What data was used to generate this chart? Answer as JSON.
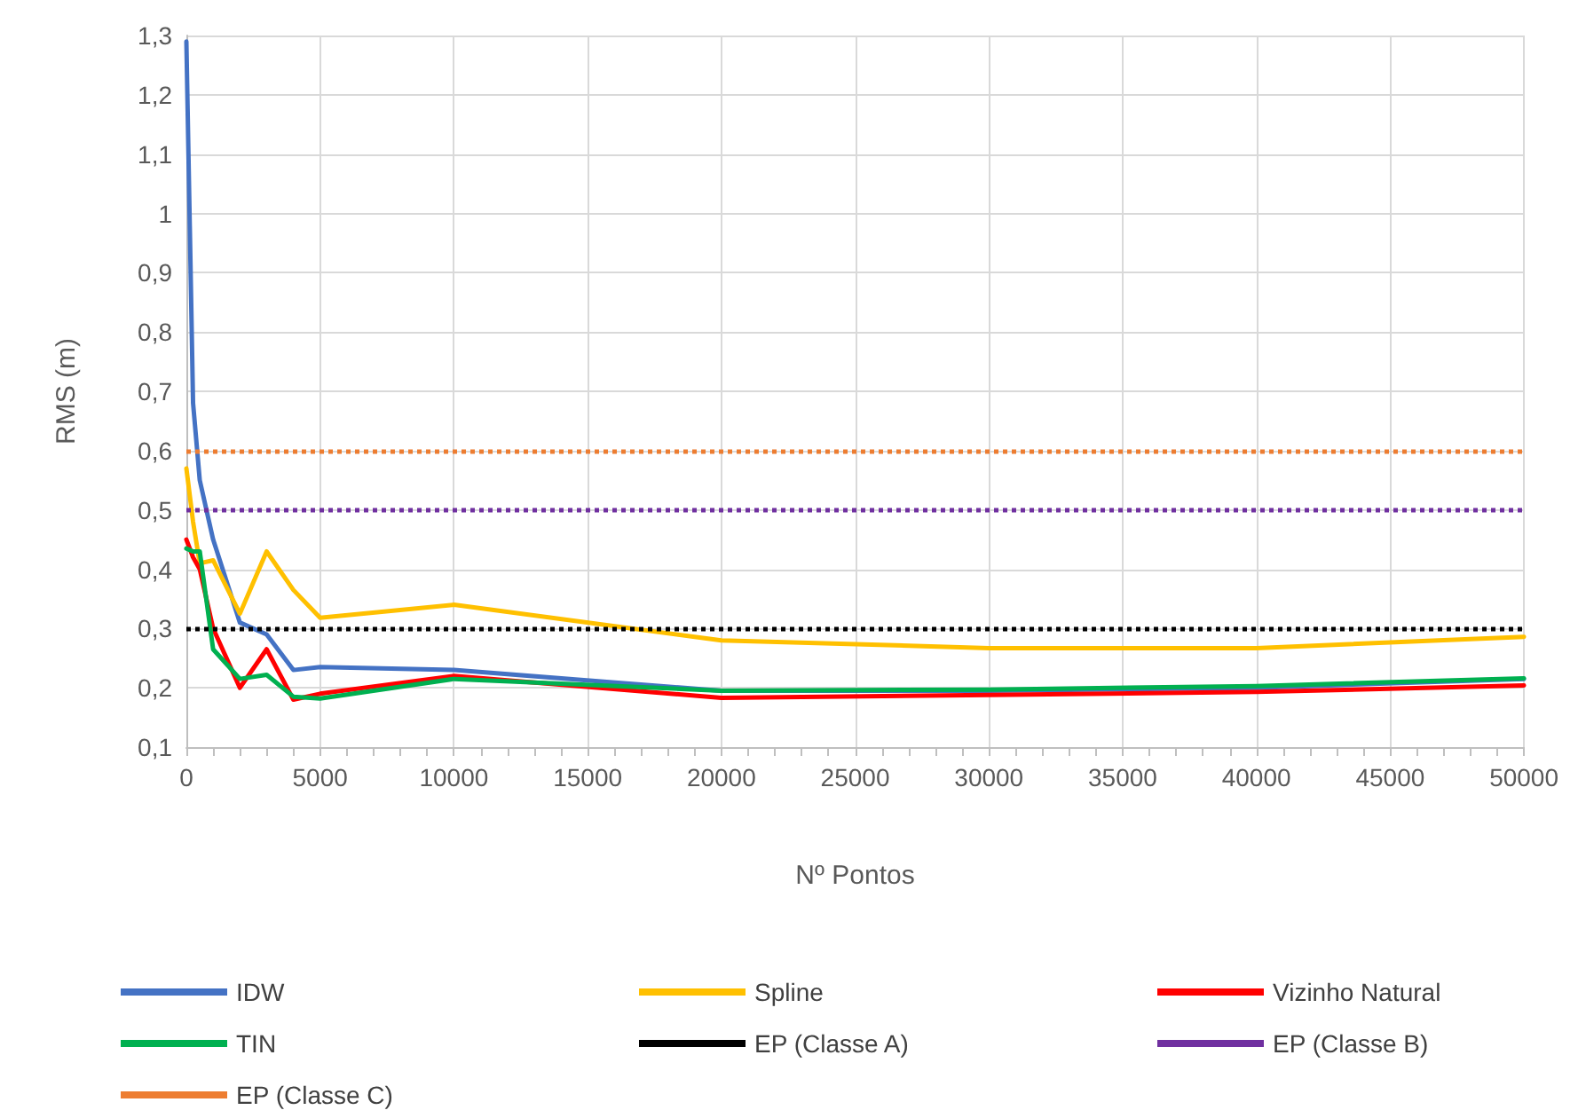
{
  "chart_data": {
    "type": "line",
    "xlabel": "Nº Pontos",
    "ylabel": "RMS (m)",
    "grid": true,
    "legend": "bottom",
    "marker": "none",
    "line_style": "solid",
    "x": [
      0,
      250,
      500,
      1000,
      2000,
      3000,
      4000,
      5000,
      10000,
      20000,
      30000,
      40000,
      50000
    ],
    "series": [
      {
        "name": "IDW",
        "color": "#4472c4",
        "values": [
          1.29,
          0.68,
          0.55,
          0.45,
          0.31,
          0.29,
          0.23,
          0.235,
          0.23,
          0.195,
          0.195,
          0.2,
          0.215
        ]
      },
      {
        "name": "Spline",
        "color": "#ffc000",
        "values": [
          0.57,
          0.48,
          0.41,
          0.415,
          0.325,
          0.43,
          0.365,
          0.318,
          0.34,
          0.28,
          0.267,
          0.267,
          0.286
        ]
      },
      {
        "name": "Vizinho Natural",
        "color": "#ff0000",
        "values": [
          0.45,
          0.42,
          0.4,
          0.3,
          0.2,
          0.265,
          0.18,
          0.19,
          0.22,
          0.183,
          0.188,
          0.193,
          0.204
        ]
      },
      {
        "name": "TIN",
        "color": "#00b050",
        "values": [
          0.435,
          0.43,
          0.43,
          0.265,
          0.215,
          0.222,
          0.185,
          0.182,
          0.215,
          0.195,
          0.197,
          0.203,
          0.216
        ]
      }
    ],
    "ref_lines": [
      {
        "axis": "y",
        "value": 0.3,
        "label": "EP (Classe A)",
        "color": "#000000",
        "line_style": "dotted"
      },
      {
        "axis": "y",
        "value": 0.5,
        "label": "EP (Classe B)",
        "color": "#7030a0",
        "line_style": "dotted"
      },
      {
        "axis": "y",
        "value": 0.6,
        "label": "EP (Classe C)",
        "color": "#ed7d31",
        "line_style": "dotted"
      }
    ],
    "xlim": [
      0,
      50000
    ],
    "xticks": [
      0,
      5000,
      10000,
      15000,
      20000,
      25000,
      30000,
      35000,
      40000,
      45000,
      50000
    ],
    "ylim": [
      0.1,
      1.3
    ],
    "yticks": [
      {
        "value": 0.1,
        "label": "0,1"
      },
      {
        "value": 0.2,
        "label": "0,2"
      },
      {
        "value": 0.3,
        "label": "0,3"
      },
      {
        "value": 0.4,
        "label": "0,4"
      },
      {
        "value": 0.5,
        "label": "0,5"
      },
      {
        "value": 0.6,
        "label": "0,6"
      },
      {
        "value": 0.7,
        "label": "0,7"
      },
      {
        "value": 0.8,
        "label": "0,8"
      },
      {
        "value": 0.9,
        "label": "0,9"
      },
      {
        "value": 1,
        "label": "1"
      },
      {
        "value": 1.1,
        "label": "1,1"
      },
      {
        "value": 1.2,
        "label": "1,2"
      },
      {
        "value": 1.3,
        "label": "1,3"
      }
    ]
  }
}
